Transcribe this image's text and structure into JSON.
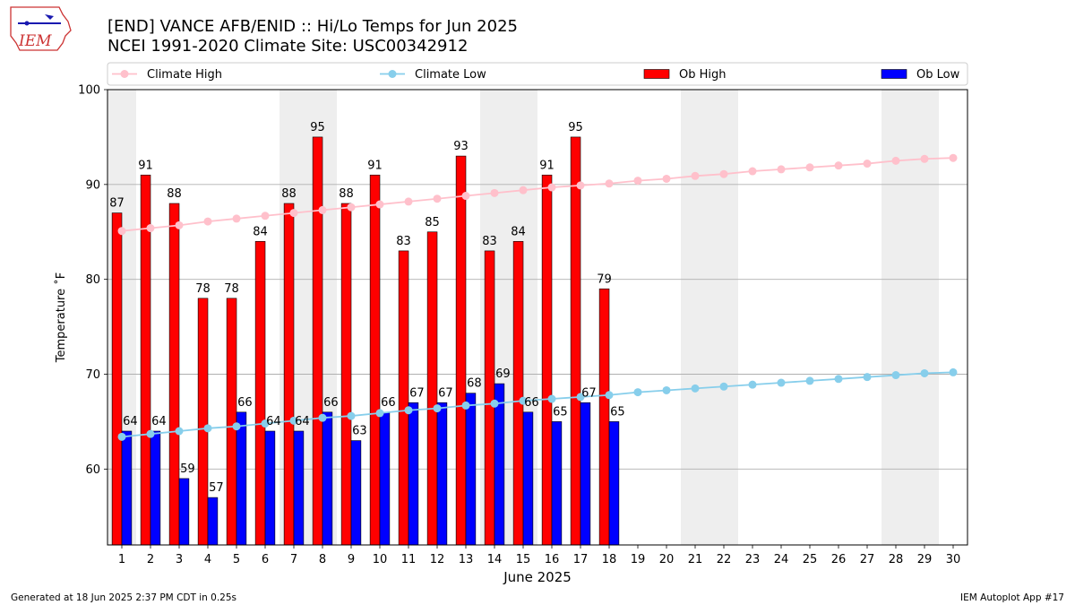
{
  "title_line1": "[END] VANCE AFB/ENID :: Hi/Lo Temps for Jun 2025",
  "title_line2": "NCEI 1991-2020 Climate Site: USC00342912",
  "logo_text": "IEM",
  "footer_left": "Generated at 18 Jun 2025 2:37 PM CDT in 0.25s",
  "footer_right": "IEM Autoplot App #17",
  "colors": {
    "ob_high": "#ff0000",
    "ob_low": "#0000ff",
    "climate_high": "#ffc0cb",
    "climate_low": "#87ceeb",
    "weekend_shade": "#eeeeee",
    "grid": "#b0b0b0"
  },
  "chart_data": {
    "type": "bar",
    "xlabel": "June 2025",
    "ylabel": "Temperature ˚F",
    "ylim": [
      52,
      100
    ],
    "yticks": [
      60,
      70,
      80,
      90,
      100
    ],
    "grid": "horizontal",
    "legend_placement": "top",
    "days": [
      1,
      2,
      3,
      4,
      5,
      6,
      7,
      8,
      9,
      10,
      11,
      12,
      13,
      14,
      15,
      16,
      17,
      18,
      19,
      20,
      21,
      22,
      23,
      24,
      25,
      26,
      27,
      28,
      29,
      30
    ],
    "weekend_days": [
      1,
      7,
      8,
      14,
      15,
      21,
      22,
      28,
      29
    ],
    "legend": [
      "Climate High",
      "Climate Low",
      "Ob High",
      "Ob Low"
    ],
    "series": [
      {
        "name": "Ob High",
        "values": [
          87,
          91,
          88,
          78,
          78,
          84,
          88,
          95,
          88,
          91,
          83,
          85,
          93,
          83,
          84,
          91,
          95,
          79
        ]
      },
      {
        "name": "Ob Low",
        "values": [
          64,
          64,
          59,
          57,
          66,
          64,
          64,
          66,
          63,
          66,
          67,
          67,
          68,
          69,
          66,
          65,
          67,
          65
        ]
      },
      {
        "name": "Climate High",
        "values": [
          85.1,
          85.4,
          85.7,
          86.1,
          86.4,
          86.7,
          87.0,
          87.3,
          87.6,
          87.9,
          88.2,
          88.5,
          88.8,
          89.1,
          89.4,
          89.7,
          89.9,
          90.1,
          90.4,
          90.6,
          90.9,
          91.1,
          91.4,
          91.6,
          91.8,
          92.0,
          92.2,
          92.5,
          92.7,
          92.8
        ]
      },
      {
        "name": "Climate Low",
        "values": [
          63.4,
          63.7,
          64.0,
          64.3,
          64.5,
          64.8,
          65.1,
          65.4,
          65.6,
          65.9,
          66.2,
          66.4,
          66.7,
          66.9,
          67.2,
          67.4,
          67.6,
          67.8,
          68.1,
          68.3,
          68.5,
          68.7,
          68.9,
          69.1,
          69.3,
          69.5,
          69.7,
          69.9,
          70.1,
          70.2
        ]
      }
    ]
  }
}
